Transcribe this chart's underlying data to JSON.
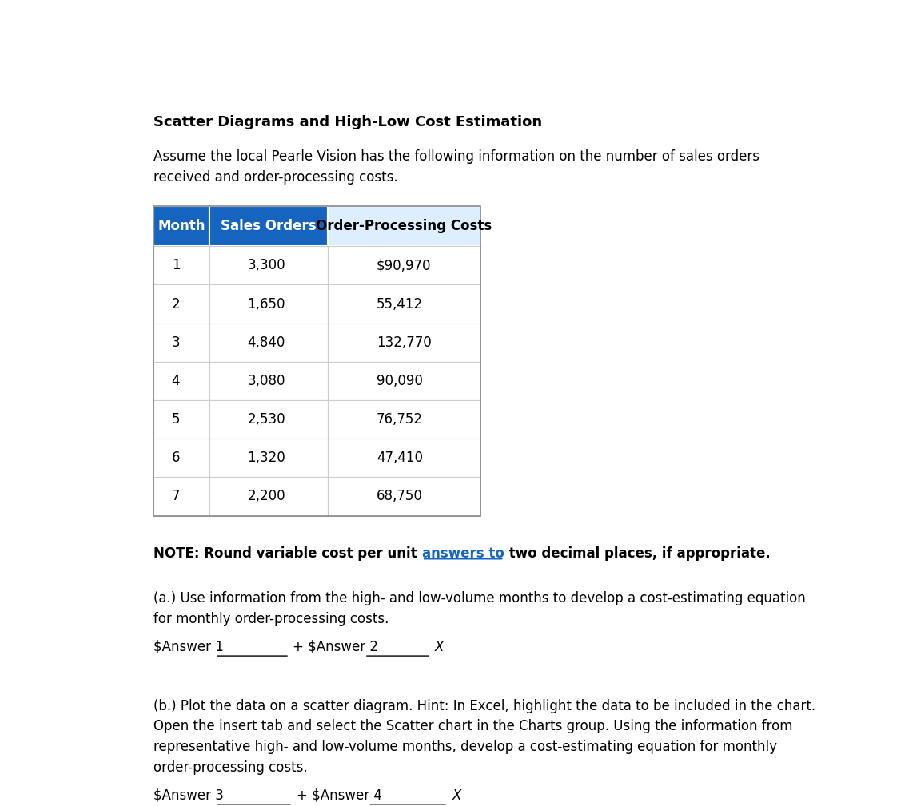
{
  "title": "Scatter Diagrams and High-Low Cost Estimation",
  "intro_line1": "Assume the local Pearle Vision has the following information on the number of sales orders",
  "intro_line2": "received and order-processing costs.",
  "table_headers": [
    "Month",
    "Sales Orders",
    "Order-Processing Costs"
  ],
  "table_data": [
    [
      "1",
      "3,300",
      "$90,970"
    ],
    [
      "2",
      "1,650",
      "55,412"
    ],
    [
      "3",
      "4,840",
      "132,770"
    ],
    [
      "4",
      "3,080",
      "90,090"
    ],
    [
      "5",
      "2,530",
      "76,752"
    ],
    [
      "6",
      "1,320",
      "47,410"
    ],
    [
      "7",
      "2,200",
      "68,750"
    ]
  ],
  "header_col12_bg": "#1565C0",
  "header_col3_bg": "#DDEEFF",
  "note_prefix": "NOTE: Round variable cost per unit ",
  "note_underline": "answers to",
  "note_suffix": " two decimal places, if appropriate.",
  "underline_color": "#1565C0",
  "part_a_line1": "(a.) Use information from the high- and low-volume months to develop a cost-estimating equation",
  "part_a_line2": "for monthly order-processing costs.",
  "part_a_label1": "$Answer 1",
  "part_a_label2": "+ $Answer 2",
  "part_a_x": "X",
  "part_b_line1": "(b.) Plot the data on a scatter diagram. Hint: In Excel, highlight the data to be included in the chart.",
  "part_b_line2": "Open the insert tab and select the Scatter chart in the Charts group. Using the information from",
  "part_b_line3": "representative high- and low-volume months, develop a cost-estimating equation for monthly",
  "part_b_line4": "order-processing costs.",
  "part_b_label1": "$Answer 3",
  "part_b_label2": "+ $Answer 4",
  "part_b_x": "X",
  "bg_color": "#ffffff",
  "text_color": "#000000",
  "font_size_title": 13,
  "font_size_body": 12,
  "font_size_table": 12
}
